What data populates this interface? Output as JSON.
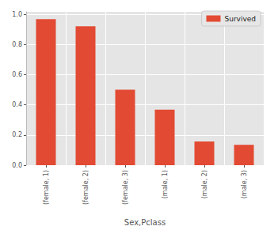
{
  "chart_data": {
    "type": "bar",
    "categories": [
      "(female, 1)",
      "(female, 2)",
      "(female, 3)",
      "(male, 1)",
      "(male, 2)",
      "(male, 3)"
    ],
    "series": [
      {
        "name": "Survived",
        "color": "#E24A33",
        "values": [
          0.968,
          0.921,
          0.5,
          0.368,
          0.157,
          0.135
        ]
      }
    ],
    "x_label": "Sex,Pclass",
    "ylim": [
      0,
      1.016
    ],
    "yticks": [
      {
        "value": 0,
        "label": "0.0"
      },
      {
        "value": 0.2,
        "label": "0.2"
      },
      {
        "value": 0.4,
        "label": "0.4"
      },
      {
        "value": 0.6,
        "label": "0.6"
      },
      {
        "value": 0.8,
        "label": "0.8"
      },
      {
        "value": 1.0,
        "label": "1.0"
      }
    ],
    "grid": true,
    "legend": "upper right"
  }
}
